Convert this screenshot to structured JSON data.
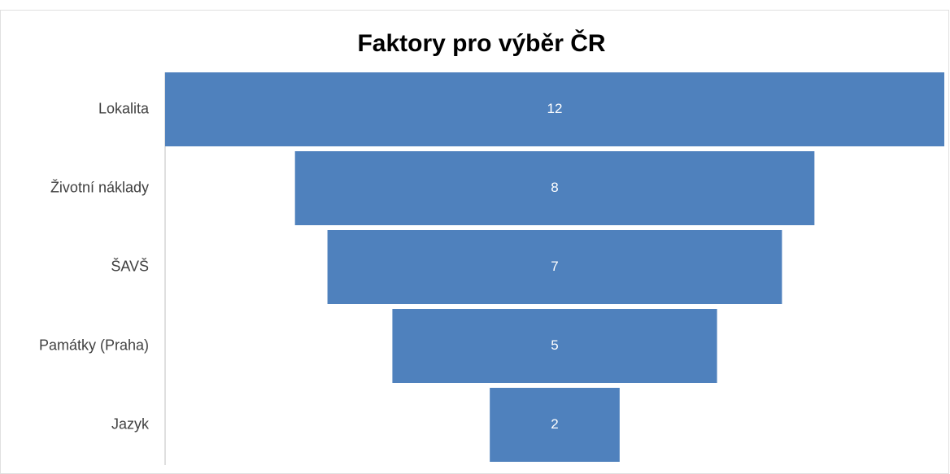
{
  "chart_data": {
    "type": "funnel",
    "title": "Faktory pro výběr ČR",
    "categories": [
      "Lokalita",
      "Životní náklady",
      "ŠAVŠ",
      "Památky (Praha)",
      "Jazyk"
    ],
    "values": [
      12,
      8,
      7,
      5,
      2
    ],
    "color": "#4f81bd"
  }
}
